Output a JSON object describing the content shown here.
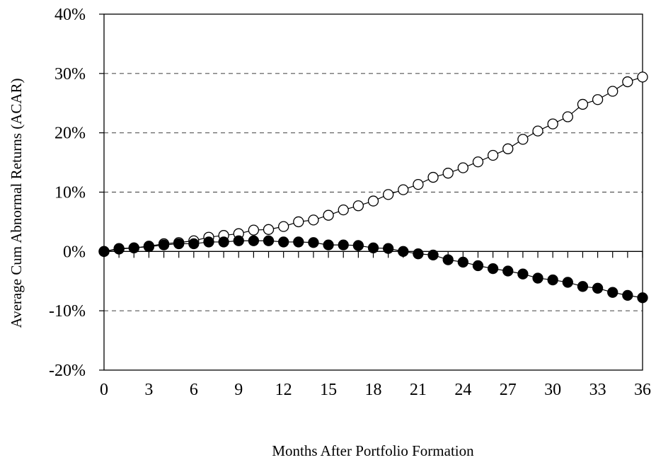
{
  "chart_data": {
    "type": "line",
    "title": "",
    "xlabel": "Months After Portfolio Formation",
    "ylabel": "Average Cum Abnormal Returns (ACAR)",
    "xlim": [
      0,
      36
    ],
    "ylim": [
      -0.2,
      0.4
    ],
    "x_ticks": [
      0,
      3,
      6,
      9,
      12,
      15,
      18,
      21,
      24,
      27,
      30,
      33,
      36
    ],
    "x_tick_labels": [
      "0",
      "3",
      "6",
      "9",
      "12",
      "15",
      "18",
      "21",
      "24",
      "27",
      "30",
      "33",
      "36"
    ],
    "y_ticks": [
      -0.2,
      -0.1,
      0,
      0.1,
      0.2,
      0.3,
      0.4
    ],
    "y_tick_labels": [
      "-20%",
      "-10%",
      "0%",
      "10%",
      "20%",
      "30%",
      "40%"
    ],
    "grid": "horizontal dashed",
    "legend": "none",
    "x": [
      0,
      1,
      2,
      3,
      4,
      5,
      6,
      7,
      8,
      9,
      10,
      11,
      12,
      13,
      14,
      15,
      16,
      17,
      18,
      19,
      20,
      21,
      22,
      23,
      24,
      25,
      26,
      27,
      28,
      29,
      30,
      31,
      32,
      33,
      34,
      35,
      36
    ],
    "series": [
      {
        "marker": "open-circle",
        "values": [
          0.0,
          0.004,
          0.006,
          0.009,
          0.013,
          0.015,
          0.018,
          0.024,
          0.027,
          0.03,
          0.036,
          0.037,
          0.042,
          0.05,
          0.053,
          0.061,
          0.07,
          0.077,
          0.085,
          0.096,
          0.104,
          0.113,
          0.125,
          0.132,
          0.141,
          0.151,
          0.162,
          0.173,
          0.189,
          0.203,
          0.215,
          0.227,
          0.248,
          0.256,
          0.27,
          0.286,
          0.294
        ]
      },
      {
        "marker": "filled-circle",
        "values": [
          0.0,
          0.005,
          0.006,
          0.008,
          0.011,
          0.013,
          0.013,
          0.016,
          0.016,
          0.018,
          0.018,
          0.018,
          0.016,
          0.016,
          0.015,
          0.011,
          0.011,
          0.01,
          0.006,
          0.005,
          0.0,
          -0.004,
          -0.006,
          -0.014,
          -0.018,
          -0.024,
          -0.029,
          -0.033,
          -0.038,
          -0.045,
          -0.048,
          -0.052,
          -0.059,
          -0.062,
          -0.069,
          -0.074,
          -0.078
        ]
      }
    ]
  },
  "colors": {
    "line": "#000000",
    "grid": "#555555",
    "open_marker_fill": "#ffffff",
    "filled_marker_fill": "#000000"
  }
}
